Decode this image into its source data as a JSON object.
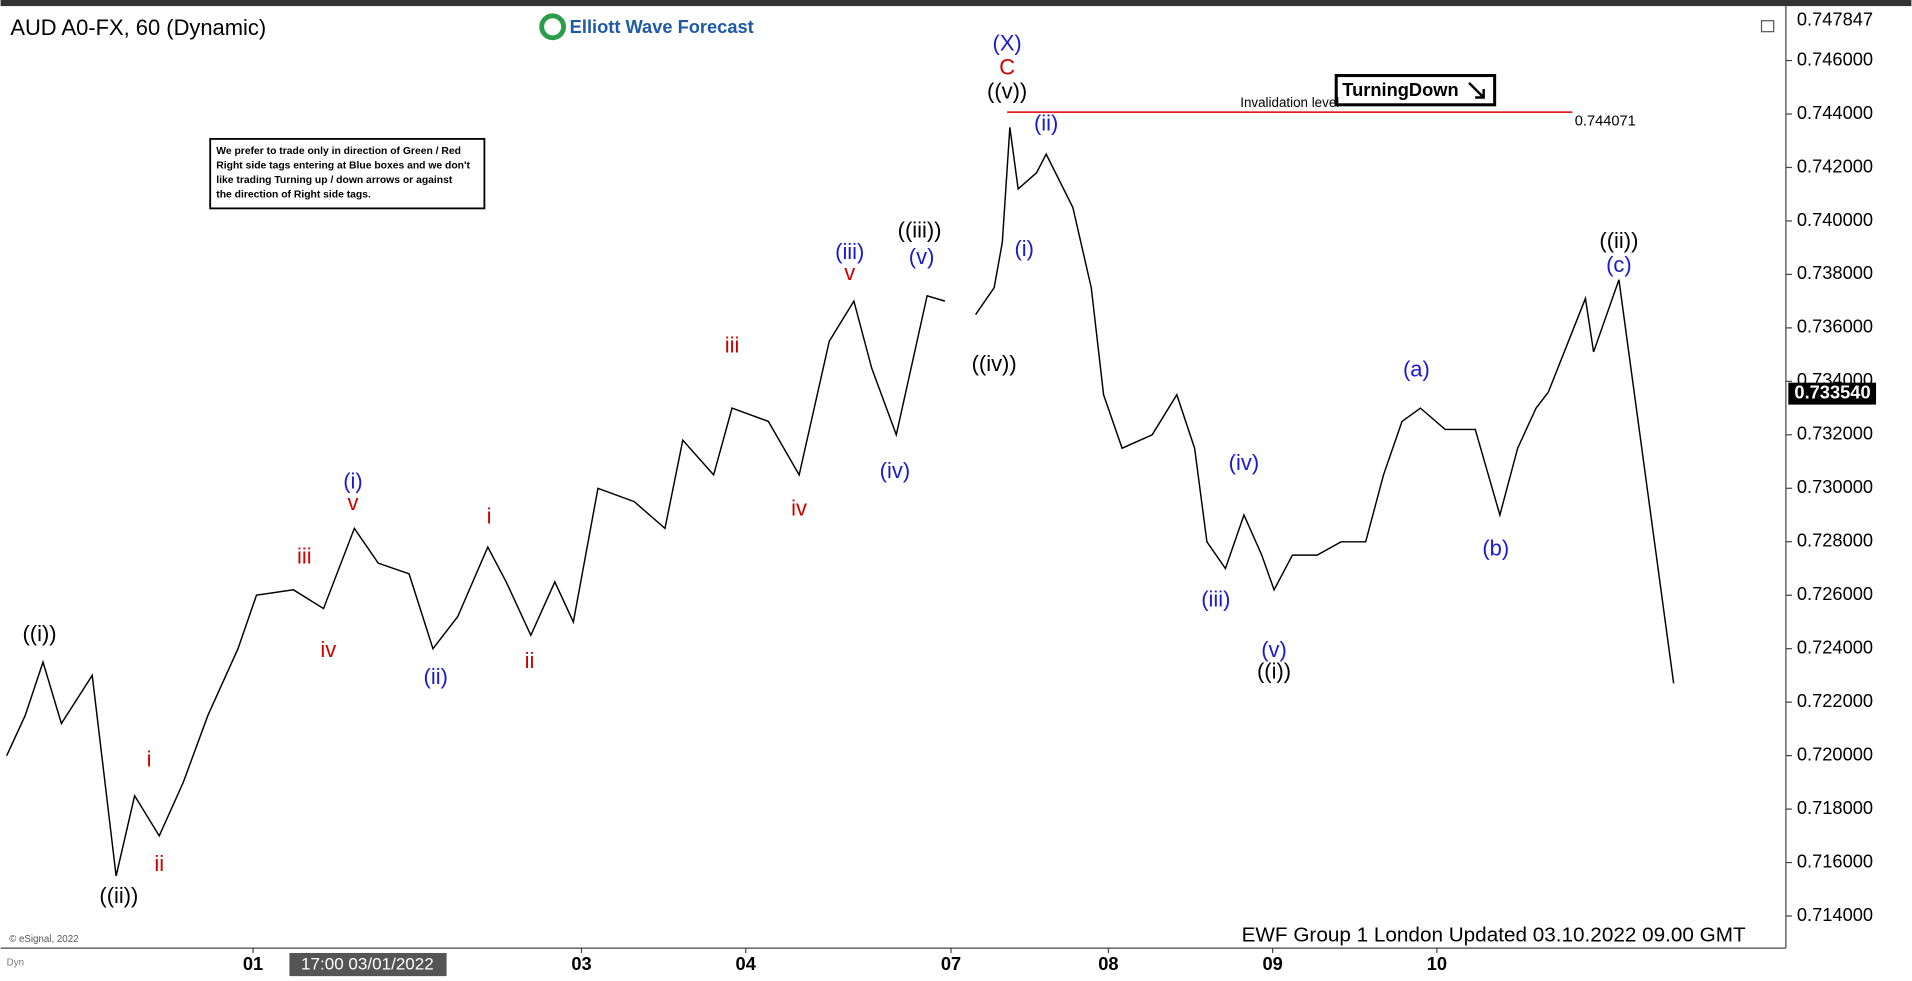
{
  "chart_data": {
    "type": "line",
    "title": "AUD A0-FX, 60 (Dynamic)",
    "logo": "Elliott Wave Forecast",
    "note": [
      "We prefer to trade only in direction of Green / Red",
      "Right side tags entering at Blue boxes and we don't",
      "like trading Turning up / down arrows or against",
      "the direction of Right side tags."
    ],
    "badge": "TurningDown",
    "footer": "EWF Group 1 London Updated 03.10.2022 09.00 GMT",
    "copyright": "© eSignal, 2022",
    "crosshair_label": "17:00 03/01/2022",
    "corner_label": "Dyn",
    "color": "#000000",
    "xlim": [
      0,
      260
    ],
    "ylim": [
      0.7128,
      0.7479
    ],
    "xticks": [
      {
        "value": 36,
        "label": "01"
      },
      {
        "value": 84,
        "label": "03"
      },
      {
        "value": 108,
        "label": "04"
      },
      {
        "value": 138,
        "label": "07"
      },
      {
        "value": 161,
        "label": "08"
      },
      {
        "value": 185,
        "label": "09"
      },
      {
        "value": 209,
        "label": "10"
      }
    ],
    "yticks": [
      {
        "value": 0.714,
        "label": "0.714000"
      },
      {
        "value": 0.716,
        "label": "0.716000"
      },
      {
        "value": 0.718,
        "label": "0.718000"
      },
      {
        "value": 0.72,
        "label": "0.720000"
      },
      {
        "value": 0.722,
        "label": "0.722000"
      },
      {
        "value": 0.724,
        "label": "0.724000"
      },
      {
        "value": 0.726,
        "label": "0.726000"
      },
      {
        "value": 0.728,
        "label": "0.728000"
      },
      {
        "value": 0.73,
        "label": "0.730000"
      },
      {
        "value": 0.732,
        "label": "0.732000"
      },
      {
        "value": 0.734,
        "label": "0.734000"
      },
      {
        "value": 0.736,
        "label": "0.736000"
      },
      {
        "value": 0.738,
        "label": "0.738000"
      },
      {
        "value": 0.74,
        "label": "0.740000"
      },
      {
        "value": 0.742,
        "label": "0.742000"
      },
      {
        "value": 0.744,
        "label": "0.744000"
      },
      {
        "value": 0.746,
        "label": "0.746000"
      }
    ],
    "x": [
      0,
      2.7,
      5.3,
      8,
      12.5,
      16,
      18.7,
      22.3,
      25.8,
      29.4,
      33.8,
      36.5,
      41.9,
      46.3,
      50.8,
      54.3,
      58.8,
      62.3,
      65.9,
      70.3,
      73,
      76.6,
      80.1,
      82.8,
      86.4,
      91.7,
      96.2,
      98.8,
      103.3,
      106,
      111.3,
      115.8,
      120.2,
      123.8,
      126.4,
      130,
      134.5,
      137.1,
      138.5,
      141.6,
      144.3,
      145.5,
      146.6,
      147.8,
      150.5,
      151.9,
      155.8,
      158.5,
      160.3,
      163,
      167.4,
      171,
      173.6,
      175.4,
      178.1,
      180.8,
      183.4,
      185.2,
      187.9,
      191.5,
      195,
      198.6,
      201.2,
      203.9,
      206.6,
      210.2,
      214.6,
      218.2,
      220.8,
      223.5,
      225.3
    ],
    "values": [
      0.72,
      0.7215,
      0.7235,
      0.7212,
      0.723,
      0.7155,
      0.7185,
      0.717,
      0.719,
      0.7215,
      0.724,
      0.726,
      0.7262,
      0.7255,
      0.7285,
      0.7272,
      0.7268,
      0.724,
      0.7252,
      0.7278,
      0.7265,
      0.7245,
      0.7265,
      0.725,
      0.73,
      0.7295,
      0.7285,
      0.7318,
      0.7305,
      0.733,
      0.7325,
      0.7305,
      0.7355,
      0.737,
      0.7345,
      0.732,
      0.7372,
      0.737,
      null,
      0.7365,
      0.7375,
      0.7392,
      0.7435,
      0.7412,
      0.7418,
      0.7425,
      0.7405,
      0.7375,
      0.7335,
      0.7315,
      0.732,
      0.7335,
      0.7315,
      0.728,
      0.727,
      0.729,
      0.7275,
      0.7262,
      0.7275,
      0.7275,
      0.728,
      0.728,
      0.7305,
      0.7325,
      0.733,
      0.7322,
      0.7322,
      0.729,
      0.7315,
      0.733,
      0.7336
    ],
    "projection": {
      "x": [
        225.3,
        230.7,
        231.9,
        235.6,
        243.6
      ],
      "values": [
        0.7336,
        0.7371,
        0.7351,
        0.7378,
        0.7227
      ]
    },
    "invalidation": {
      "label": "Invalidation level",
      "value": 0.744071,
      "x": [
        146.2,
        228.8
      ],
      "color": "#e00000"
    },
    "high_price": 0.747847,
    "last_price": {
      "value": 0.73354,
      "label": "0.733540"
    },
    "waves": [
      {
        "text": "((i))",
        "color": "#000000",
        "x": 4.8,
        "price": 0.7245
      },
      {
        "text": "((ii))",
        "color": "#000000",
        "x": 16.4,
        "price": 0.7147
      },
      {
        "text": "i",
        "color": "#d00000",
        "x": 20.8,
        "price": 0.7198
      },
      {
        "text": "ii",
        "color": "#d00000",
        "x": 22.3,
        "price": 0.7159
      },
      {
        "text": "iii",
        "color": "#d00000",
        "x": 43.5,
        "price": 0.7274
      },
      {
        "text": "iv",
        "color": "#d00000",
        "x": 47,
        "price": 0.7239
      },
      {
        "text": "v",
        "color": "#d00000",
        "x": 50.6,
        "price": 0.7294
      },
      {
        "text": "(i)",
        "color": "#1a1ad0",
        "x": 50.6,
        "price": 0.7302
      },
      {
        "text": "(ii)",
        "color": "#1a1ad0",
        "x": 62.7,
        "price": 0.7229
      },
      {
        "text": "i",
        "color": "#d00000",
        "x": 70.5,
        "price": 0.7289
      },
      {
        "text": "ii",
        "color": "#d00000",
        "x": 76.4,
        "price": 0.7235
      },
      {
        "text": "iii",
        "color": "#d00000",
        "x": 106,
        "price": 0.7353
      },
      {
        "text": "iv",
        "color": "#d00000",
        "x": 115.8,
        "price": 0.7292
      },
      {
        "text": "v",
        "color": "#d00000",
        "x": 123.2,
        "price": 0.738
      },
      {
        "text": "(iii)",
        "color": "#1a1ad0",
        "x": 123.2,
        "price": 0.7388
      },
      {
        "text": "(iv)",
        "color": "#1a1ad0",
        "x": 129.8,
        "price": 0.7306
      },
      {
        "text": "(v)",
        "color": "#1a1ad0",
        "x": 133.7,
        "price": 0.7386
      },
      {
        "text": "((iii))",
        "color": "#000000",
        "x": 133.4,
        "price": 0.7396
      },
      {
        "text": "((iv))",
        "color": "#000000",
        "x": 144.3,
        "price": 0.7346
      },
      {
        "text": "C",
        "color": "#d00000",
        "x": 146.2,
        "price": 0.7457
      },
      {
        "text": "(X)",
        "color": "#1a1ad0",
        "x": 146.2,
        "price": 0.7466
      },
      {
        "text": "((v))",
        "color": "#000000",
        "x": 146.2,
        "price": 0.7448
      },
      {
        "text": "(i)",
        "color": "#1a1ad0",
        "x": 148.7,
        "price": 0.7389
      },
      {
        "text": "(ii)",
        "color": "#1a1ad0",
        "x": 151.9,
        "price": 0.7436
      },
      {
        "text": "(iii)",
        "color": "#1a1ad0",
        "x": 176.7,
        "price": 0.7258
      },
      {
        "text": "(iv)",
        "color": "#1a1ad0",
        "x": 180.8,
        "price": 0.7309
      },
      {
        "text": "(v)",
        "color": "#1a1ad0",
        "x": 185.2,
        "price": 0.7239
      },
      {
        "text": "((i))",
        "color": "#000000",
        "x": 185.2,
        "price": 0.7231
      },
      {
        "text": "(a)",
        "color": "#1a1ad0",
        "x": 206,
        "price": 0.7344
      },
      {
        "text": "(b)",
        "color": "#1a1ad0",
        "x": 217.6,
        "price": 0.7277
      },
      {
        "text": "(c)",
        "color": "#1a1ad0",
        "x": 235.6,
        "price": 0.7383
      },
      {
        "text": "((ii))",
        "color": "#000000",
        "x": 235.6,
        "price": 0.7392
      }
    ]
  }
}
